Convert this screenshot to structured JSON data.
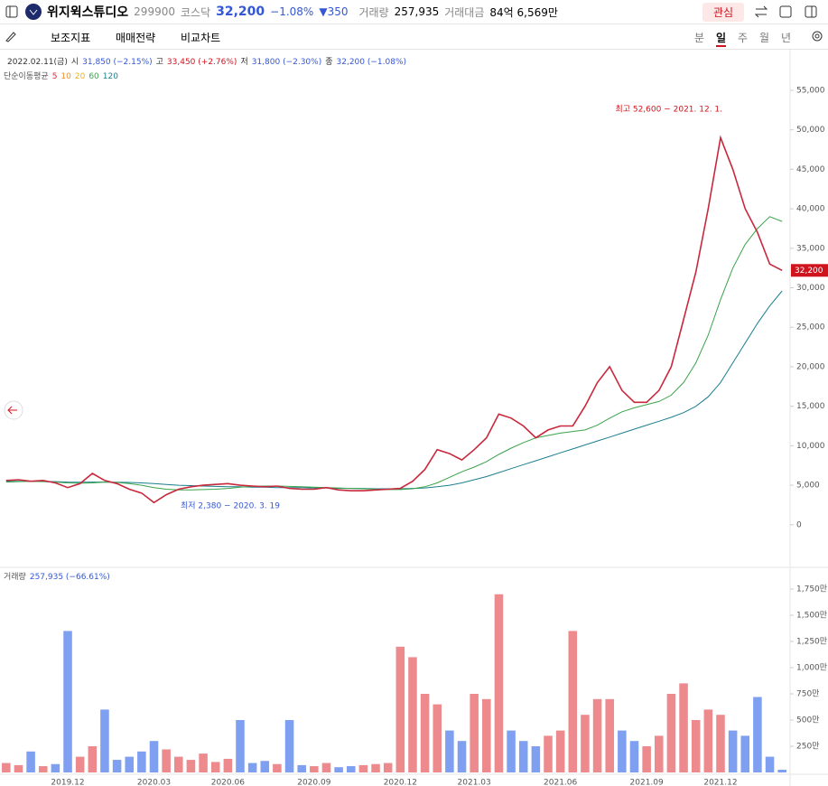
{
  "header": {
    "name": "위지윅스튜디오",
    "code": "299900",
    "market": "코스닥",
    "price": "32,200",
    "change_pct": "−1.08%",
    "change": "350",
    "volume_label": "거래량",
    "volume": "257,935",
    "amount_label": "거래대금",
    "amount": "84억 6,569만",
    "watch": "관심"
  },
  "toolbar": {
    "tools": [
      "보조지표",
      "매매전략",
      "비교차트"
    ],
    "periods": [
      "분",
      "일",
      "주",
      "월",
      "년"
    ],
    "active_period": 1
  },
  "info": {
    "date": "2022.02.11(금)",
    "open_label": "시",
    "open": "31,850 (−2.15%)",
    "high_label": "고",
    "high": "33,450 (+2.76%)",
    "low_label": "저",
    "low": "31,800 (−2.30%)",
    "close_label": "종",
    "close": "32,200 (−1.08%)"
  },
  "ma_legend": {
    "title": "단순이동평균",
    "items": [
      {
        "period": 5,
        "color": "#e5282c"
      },
      {
        "period": 10,
        "color": "#f08c2a"
      },
      {
        "period": 20,
        "color": "#e8b020"
      },
      {
        "period": 60,
        "color": "#3aa34a"
      },
      {
        "period": 120,
        "color": "#1a7f8e"
      }
    ]
  },
  "chart_data": {
    "type": "line",
    "categories": [
      null,
      null,
      null,
      null,
      null,
      "2019.12",
      null,
      null,
      null,
      null,
      null,
      null,
      "2020.03",
      null,
      null,
      null,
      null,
      null,
      "2020.06",
      null,
      null,
      null,
      null,
      null,
      null,
      "2020.09",
      null,
      null,
      null,
      null,
      null,
      null,
      "2020.12",
      null,
      null,
      null,
      null,
      null,
      "2021.03",
      null,
      null,
      null,
      null,
      null,
      null,
      "2021.06",
      null,
      null,
      null,
      null,
      null,
      null,
      "2021.09",
      null,
      null,
      null,
      null,
      null,
      "2021.12",
      null,
      null,
      null,
      null,
      null
    ],
    "series": [
      {
        "name": "종가",
        "color": "#c8283c",
        "values": [
          5600,
          5700,
          5500,
          5600,
          5300,
          4700,
          5200,
          6500,
          5600,
          5200,
          4500,
          4000,
          2800,
          3800,
          4500,
          4800,
          5000,
          5100,
          5200,
          5000,
          4900,
          4800,
          4900,
          4600,
          4500,
          4500,
          4700,
          4400,
          4300,
          4300,
          4400,
          4500,
          4600,
          5500,
          7000,
          9500,
          9000,
          8200,
          9500,
          11000,
          14000,
          13500,
          12500,
          11000,
          12000,
          12500,
          12500,
          15000,
          18000,
          20000,
          17000,
          15500,
          15500,
          17000,
          20000,
          26000,
          32000,
          40000,
          49000,
          45000,
          40000,
          37000,
          33000,
          32200
        ]
      },
      {
        "name": "60",
        "color": "#3aa34a",
        "values": [
          5400,
          5450,
          5500,
          5450,
          5400,
          5300,
          5250,
          5300,
          5400,
          5350,
          5200,
          5000,
          4700,
          4500,
          4400,
          4400,
          4450,
          4500,
          4600,
          4750,
          4850,
          4900,
          4900,
          4850,
          4800,
          4750,
          4700,
          4650,
          4600,
          4550,
          4500,
          4450,
          4450,
          4550,
          4800,
          5300,
          6000,
          6700,
          7300,
          8000,
          8900,
          9700,
          10400,
          11000,
          11300,
          11600,
          11800,
          12000,
          12600,
          13500,
          14300,
          14800,
          15200,
          15600,
          16400,
          18000,
          20500,
          24000,
          28500,
          32500,
          35500,
          37500,
          39000,
          38400
        ]
      },
      {
        "name": "120",
        "color": "#1a7f8e",
        "values": [
          5500,
          5500,
          5500,
          5480,
          5450,
          5400,
          5380,
          5400,
          5400,
          5380,
          5350,
          5300,
          5200,
          5100,
          5000,
          4950,
          4900,
          4850,
          4800,
          4800,
          4750,
          4750,
          4700,
          4700,
          4700,
          4650,
          4650,
          4600,
          4600,
          4600,
          4550,
          4550,
          4550,
          4600,
          4650,
          4800,
          5000,
          5300,
          5700,
          6100,
          6600,
          7100,
          7600,
          8100,
          8600,
          9100,
          9600,
          10100,
          10600,
          11100,
          11600,
          12100,
          12600,
          13100,
          13600,
          14200,
          15000,
          16200,
          18000,
          20500,
          23000,
          25500,
          27700,
          29600
        ]
      }
    ],
    "ylim": [
      -5400,
      59800
    ],
    "yticks": [
      0,
      {
        "value": 5000,
        "label": "5,000"
      },
      {
        "value": 10000,
        "label": "10,000"
      },
      {
        "value": 15000,
        "label": "15,000"
      },
      {
        "value": 20000,
        "label": "20,000"
      },
      {
        "value": 25000,
        "label": "25,000"
      },
      {
        "value": 30000,
        "label": "30,000"
      },
      {
        "value": 35000,
        "label": "35,000"
      },
      {
        "value": 40000,
        "label": "40,000"
      },
      {
        "value": 45000,
        "label": "45,000"
      },
      {
        "value": 50000,
        "label": "50,000"
      },
      {
        "value": 55000,
        "label": "55,000"
      }
    ],
    "price_tag": {
      "value": 32200,
      "label": "32,200",
      "color": "#d0141e"
    },
    "annotations": [
      {
        "text": "최고 52,600 − 2021. 12. 1.",
        "value": 52600,
        "color": "#d0141e"
      },
      {
        "text": "최저 2,380 − 2020. 3. 19",
        "value": 2380,
        "color": "#3457d5"
      }
    ],
    "volume": {
      "label": "거래량",
      "summary": "257,935 (−66.61%)",
      "up_color": "#ec8a8e",
      "down_color": "#7f9ff0",
      "values": [
        900000,
        700000,
        2000000,
        600000,
        800000,
        13500000,
        1500000,
        2500000,
        6000000,
        1200000,
        1500000,
        2000000,
        3000000,
        2200000,
        1500000,
        1200000,
        1800000,
        1000000,
        1300000,
        5000000,
        900000,
        1100000,
        800000,
        5000000,
        700000,
        600000,
        900000,
        500000,
        600000,
        700000,
        800000,
        900000,
        12000000,
        11000000,
        7500000,
        6500000,
        4000000,
        3000000,
        7500000,
        7000000,
        17000000,
        4000000,
        3000000,
        2500000,
        3500000,
        4000000,
        13500000,
        5500000,
        7000000,
        7000000,
        4000000,
        3000000,
        2500000,
        3500000,
        7500000,
        8500000,
        5000000,
        6000000,
        5500000,
        4000000,
        3500000,
        7200000,
        1500000,
        257935
      ],
      "ylim": [
        0,
        19570000
      ],
      "yticks": [
        {
          "value": 2500000,
          "label": "250만"
        },
        {
          "value": 5000000,
          "label": "500만"
        },
        {
          "value": 7500000,
          "label": "750만"
        },
        {
          "value": 10000000,
          "label": "1,000만"
        },
        {
          "value": 12500000,
          "label": "1,250만"
        },
        {
          "value": 15000000,
          "label": "1,500만"
        },
        {
          "value": 17500000,
          "label": "1,750만"
        }
      ]
    }
  }
}
